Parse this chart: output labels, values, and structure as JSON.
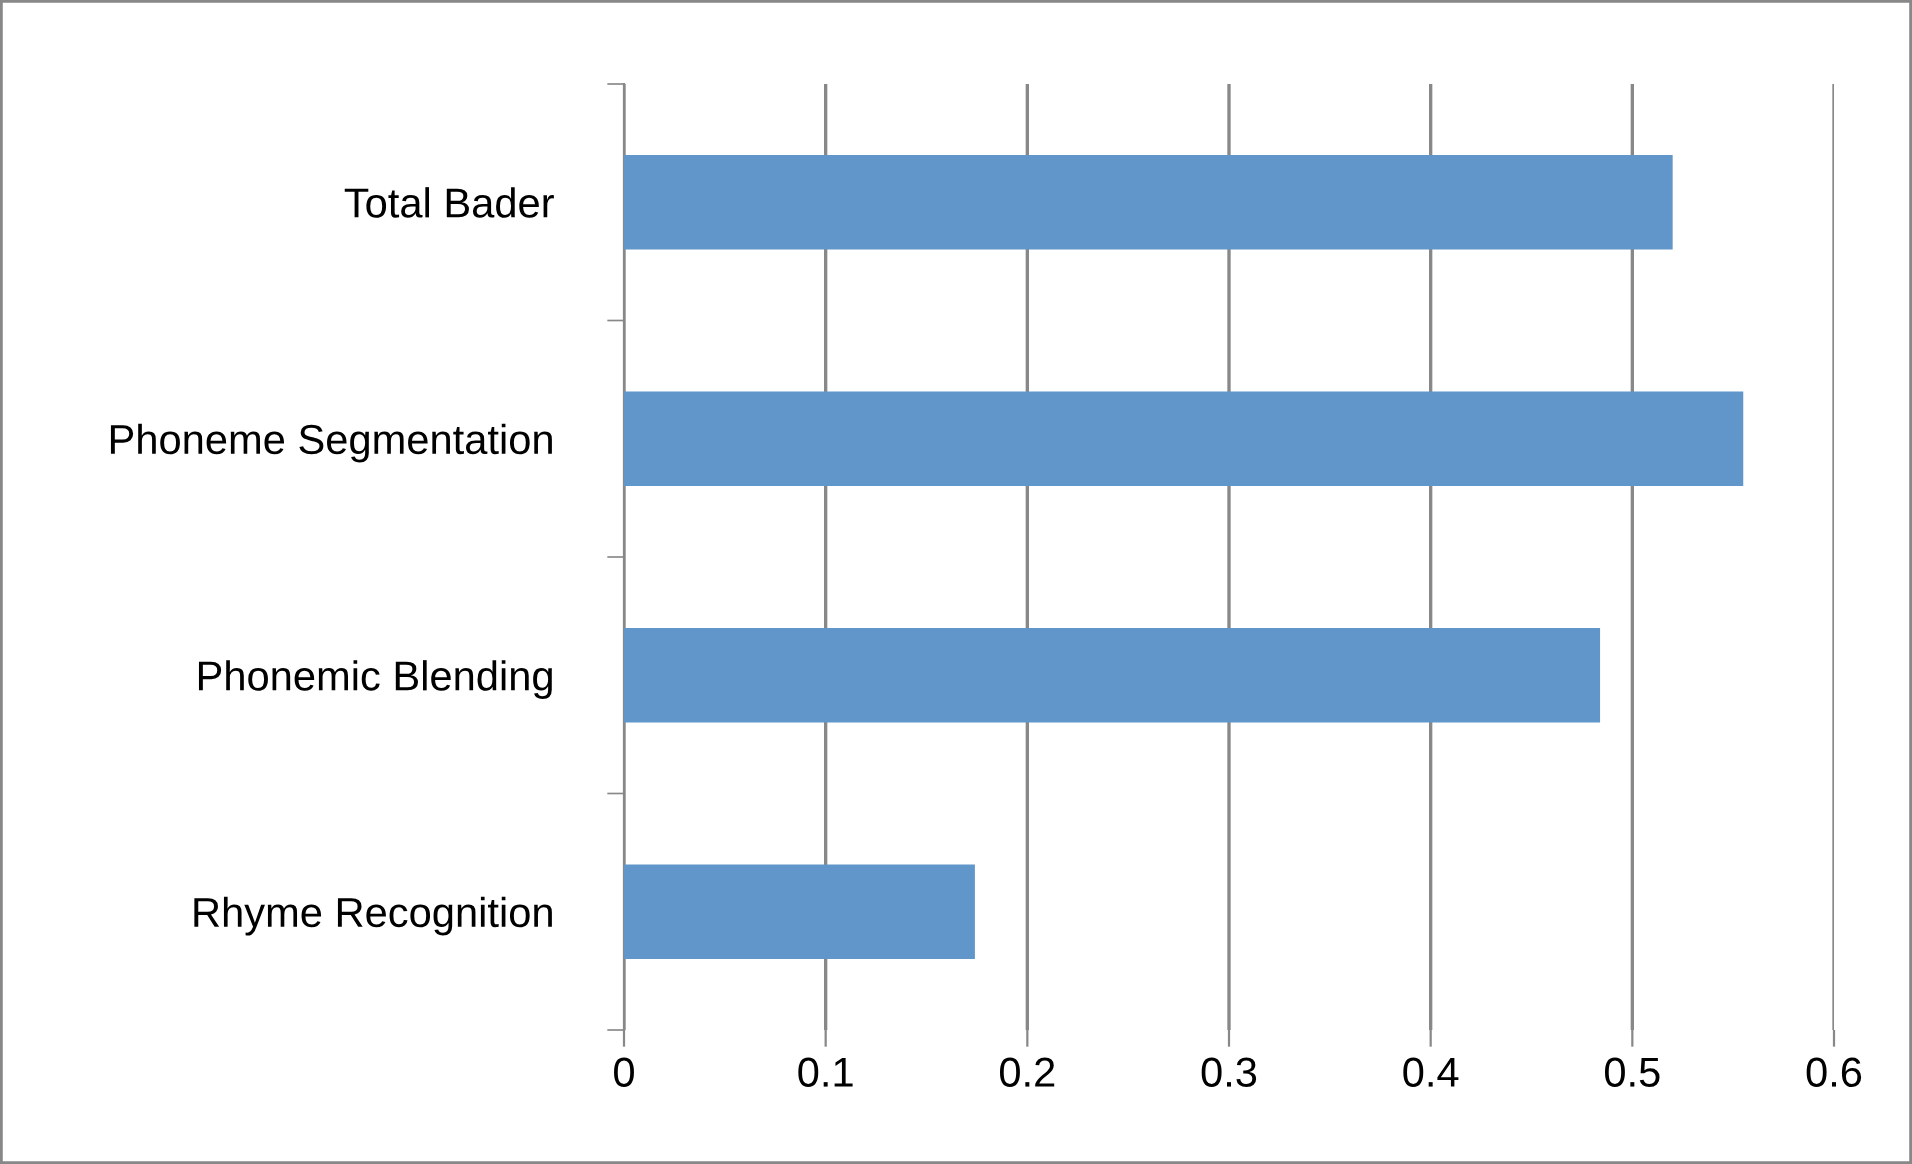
{
  "chart_data": {
    "type": "bar",
    "orientation": "horizontal",
    "categories": [
      "Total Bader",
      "Phoneme Segmentation",
      "Phonemic Blending",
      "Rhyme Recognition"
    ],
    "values": [
      0.52,
      0.555,
      0.484,
      0.174
    ],
    "color": "#6096c9",
    "xlim": [
      0,
      0.6
    ],
    "xticks": [
      0,
      0.1,
      0.2,
      0.3,
      0.4,
      0.5,
      0.6
    ],
    "grid": "x"
  }
}
